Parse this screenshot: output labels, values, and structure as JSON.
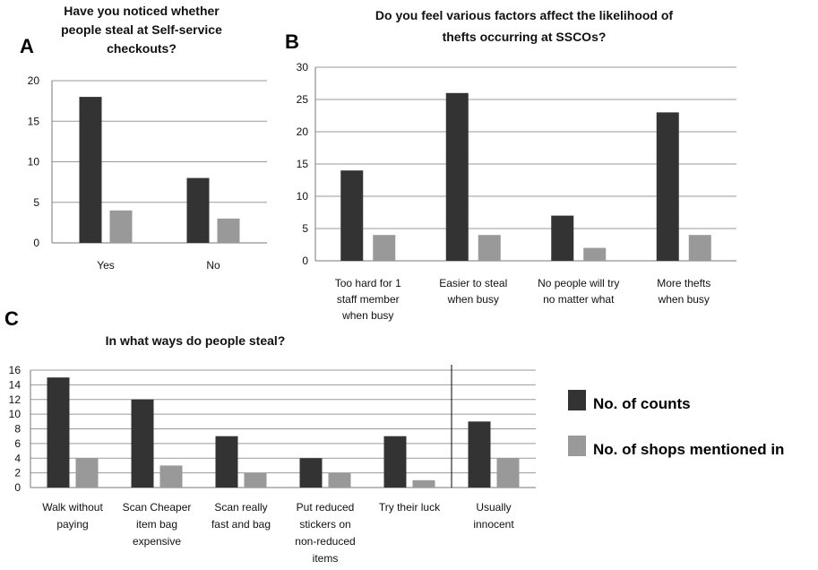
{
  "colors": {
    "counts": "#333333",
    "shops": "#999999"
  },
  "legend": {
    "placement": "right",
    "items": [
      {
        "label": "No. of counts",
        "color": "#333333"
      },
      {
        "label": "No. of shops mentioned in",
        "color": "#999999"
      }
    ]
  },
  "chart_data": [
    {
      "panel": "A",
      "type": "bar",
      "title": [
        "Have you noticed whether",
        "people steal at Self-service",
        "checkouts?"
      ],
      "categories": [
        [
          "Yes"
        ],
        [
          "No"
        ]
      ],
      "ylim": [
        0,
        20
      ],
      "yticks": [
        0,
        5,
        10,
        15,
        20
      ],
      "grid": true,
      "series": [
        {
          "values": [
            18,
            8
          ],
          "color": "#333333"
        },
        {
          "values": [
            4,
            3
          ],
          "color": "#999999"
        }
      ]
    },
    {
      "panel": "B",
      "type": "bar",
      "title": [
        "Do you feel various factors affect the likelihood of",
        "thefts occurring at SSCOs?"
      ],
      "categories": [
        [
          "Too hard for 1",
          "staff member",
          "when busy"
        ],
        [
          "Easier to steal",
          "when busy"
        ],
        [
          "No people will try",
          "no matter what"
        ],
        [
          "More thefts",
          "when busy"
        ]
      ],
      "ylim": [
        0,
        30
      ],
      "yticks": [
        0,
        5,
        10,
        15,
        20,
        25,
        30
      ],
      "grid": true,
      "series": [
        {
          "values": [
            14,
            26,
            7,
            23
          ],
          "color": "#333333"
        },
        {
          "values": [
            4,
            4,
            2,
            4
          ],
          "color": "#999999"
        }
      ]
    },
    {
      "panel": "C",
      "type": "bar",
      "title": [
        "In what ways do people steal?"
      ],
      "categories": [
        [
          "Walk without",
          "paying"
        ],
        [
          "Scan Cheaper",
          "item bag",
          "expensive"
        ],
        [
          "Scan really",
          "fast and bag"
        ],
        [
          "Put reduced",
          "stickers on",
          "non-reduced",
          "items"
        ],
        [
          "Try their luck"
        ],
        [
          "Usually",
          "innocent"
        ]
      ],
      "ylim": [
        0,
        16
      ],
      "yticks": [
        0,
        2,
        4,
        6,
        8,
        10,
        12,
        14,
        16
      ],
      "grid": true,
      "series": [
        {
          "values": [
            15,
            12,
            7,
            4,
            7,
            9
          ],
          "color": "#333333"
        },
        {
          "values": [
            4,
            3,
            2,
            2,
            1,
            4
          ],
          "color": "#999999"
        }
      ]
    }
  ]
}
